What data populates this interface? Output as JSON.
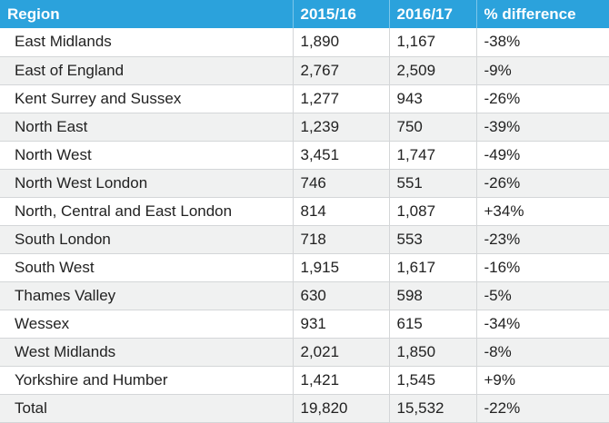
{
  "table": {
    "headers": [
      "Region",
      "2015/16",
      "2016/17",
      "% difference"
    ],
    "rows": [
      [
        "East Midlands",
        "1,890",
        "1,167",
        "-38%"
      ],
      [
        "East of England",
        "2,767",
        "2,509",
        "-9%"
      ],
      [
        "Kent Surrey and Sussex",
        "1,277",
        "943",
        "-26%"
      ],
      [
        "North East",
        "1,239",
        "750",
        "-39%"
      ],
      [
        "North West",
        "3,451",
        "1,747",
        "-49%"
      ],
      [
        "North West London",
        "746",
        "551",
        "-26%"
      ],
      [
        "North, Central and East London",
        "814",
        "1,087",
        "+34%"
      ],
      [
        "South London",
        "718",
        "553",
        "-23%"
      ],
      [
        "South West",
        "1,915",
        "1,617",
        "-16%"
      ],
      [
        "Thames Valley",
        "630",
        "598",
        "-5%"
      ],
      [
        "Wessex",
        "931",
        "615",
        "-34%"
      ],
      [
        "West Midlands",
        "2,021",
        "1,850",
        "-8%"
      ],
      [
        "Yorkshire and Humber",
        "1,421",
        "1,545",
        "+9%"
      ],
      [
        "Total",
        "19,820",
        "15,532",
        "-22%"
      ]
    ]
  },
  "colors": {
    "header_bg": "#2ba2dc",
    "header_text": "#ffffff",
    "row_alt_bg": "#f0f1f1",
    "text": "#222222"
  }
}
